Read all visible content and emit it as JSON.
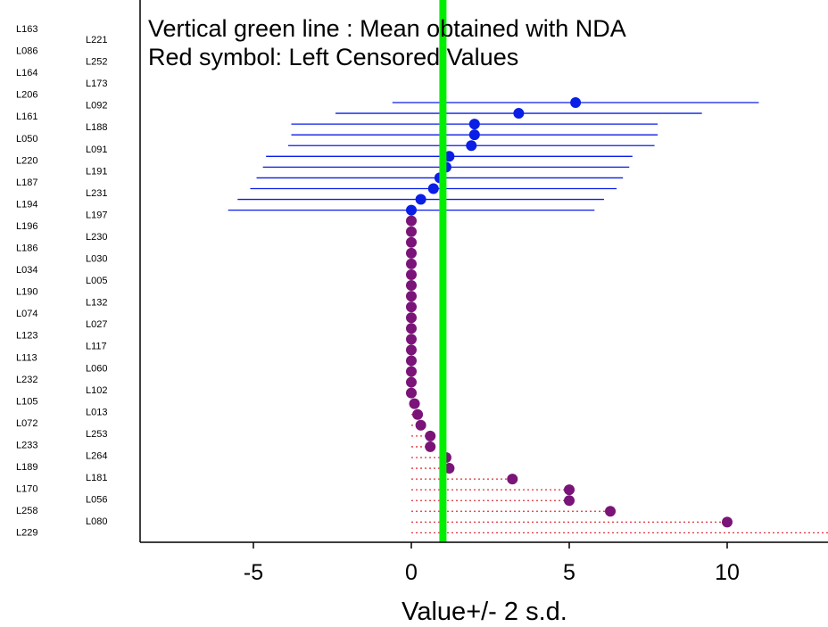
{
  "chart_data": {
    "type": "scatter",
    "title": "",
    "legend_lines": [
      "Vertical green line : Mean obtained with   NDA",
      "Red symbol: Left Censored Values"
    ],
    "xlabel": "Value+/- 2 s.d.",
    "ylabel": "",
    "xlim": [
      -8.5,
      13.2
    ],
    "x_ticks": [
      -5,
      0,
      5,
      10
    ],
    "x_tick_labels": [
      "-5",
      "0",
      "5",
      "10"
    ],
    "grid": false,
    "mean_line": {
      "value": 1.0,
      "color": "#00ee00"
    },
    "colors": {
      "measured": "#0a1ee6",
      "censored": "#7a1478",
      "censored_line": "#e0303a",
      "axis": "#000000"
    },
    "labs_left_column": [
      "L163",
      "L086",
      "L164",
      "L206",
      "L161",
      "L050",
      "L220",
      "L187",
      "L194",
      "L196",
      "L186",
      "L034",
      "L190",
      "L074",
      "L123",
      "L113",
      "L232",
      "L105",
      "L072",
      "L233",
      "L189",
      "L170",
      "L258",
      "L229"
    ],
    "labs_right_column": [
      "L221",
      "L252",
      "L173",
      "L092",
      "L188",
      "L091",
      "L191",
      "L231",
      "L197",
      "L230",
      "L030",
      "L005",
      "L132",
      "L027",
      "L117",
      "L060",
      "L102",
      "L013",
      "L253",
      "L264",
      "L181",
      "L056",
      "L080"
    ],
    "series": [
      {
        "name": "measured",
        "marker": "circle",
        "points": [
          {
            "x": 5.2,
            "xmin": -0.6,
            "xmax": 11.0
          },
          {
            "x": 3.4,
            "xmin": -2.4,
            "xmax": 9.2
          },
          {
            "x": 2.0,
            "xmin": -3.8,
            "xmax": 7.8
          },
          {
            "x": 2.0,
            "xmin": -3.8,
            "xmax": 7.8
          },
          {
            "x": 1.9,
            "xmin": -3.9,
            "xmax": 7.7
          },
          {
            "x": 1.2,
            "xmin": -4.6,
            "xmax": 7.0
          },
          {
            "x": 1.1,
            "xmin": -4.7,
            "xmax": 6.9
          },
          {
            "x": 0.9,
            "xmin": -4.9,
            "xmax": 6.7
          },
          {
            "x": 0.7,
            "xmin": -5.1,
            "xmax": 6.5
          },
          {
            "x": 0.3,
            "xmin": -5.5,
            "xmax": 6.1
          },
          {
            "x": 0.0,
            "xmin": -5.8,
            "xmax": 5.8
          }
        ]
      },
      {
        "name": "left censored",
        "marker": "circle",
        "points": [
          {
            "x": 0.0
          },
          {
            "x": 0.0
          },
          {
            "x": 0.0
          },
          {
            "x": 0.0
          },
          {
            "x": 0.0
          },
          {
            "x": 0.0
          },
          {
            "x": 0.0
          },
          {
            "x": 0.0
          },
          {
            "x": 0.0
          },
          {
            "x": 0.0
          },
          {
            "x": 0.0
          },
          {
            "x": 0.0
          },
          {
            "x": 0.0
          },
          {
            "x": 0.0
          },
          {
            "x": 0.0
          },
          {
            "x": 0.0
          },
          {
            "x": 0.0
          },
          {
            "x": 0.1
          },
          {
            "x": 0.2
          },
          {
            "x": 0.3
          },
          {
            "x": 0.6
          },
          {
            "x": 0.6
          },
          {
            "x": 1.1
          },
          {
            "x": 1.2
          },
          {
            "x": 3.2
          },
          {
            "x": 5.0
          },
          {
            "x": 5.0
          },
          {
            "x": 6.3
          },
          {
            "x": 10.0
          }
        ]
      }
    ]
  }
}
